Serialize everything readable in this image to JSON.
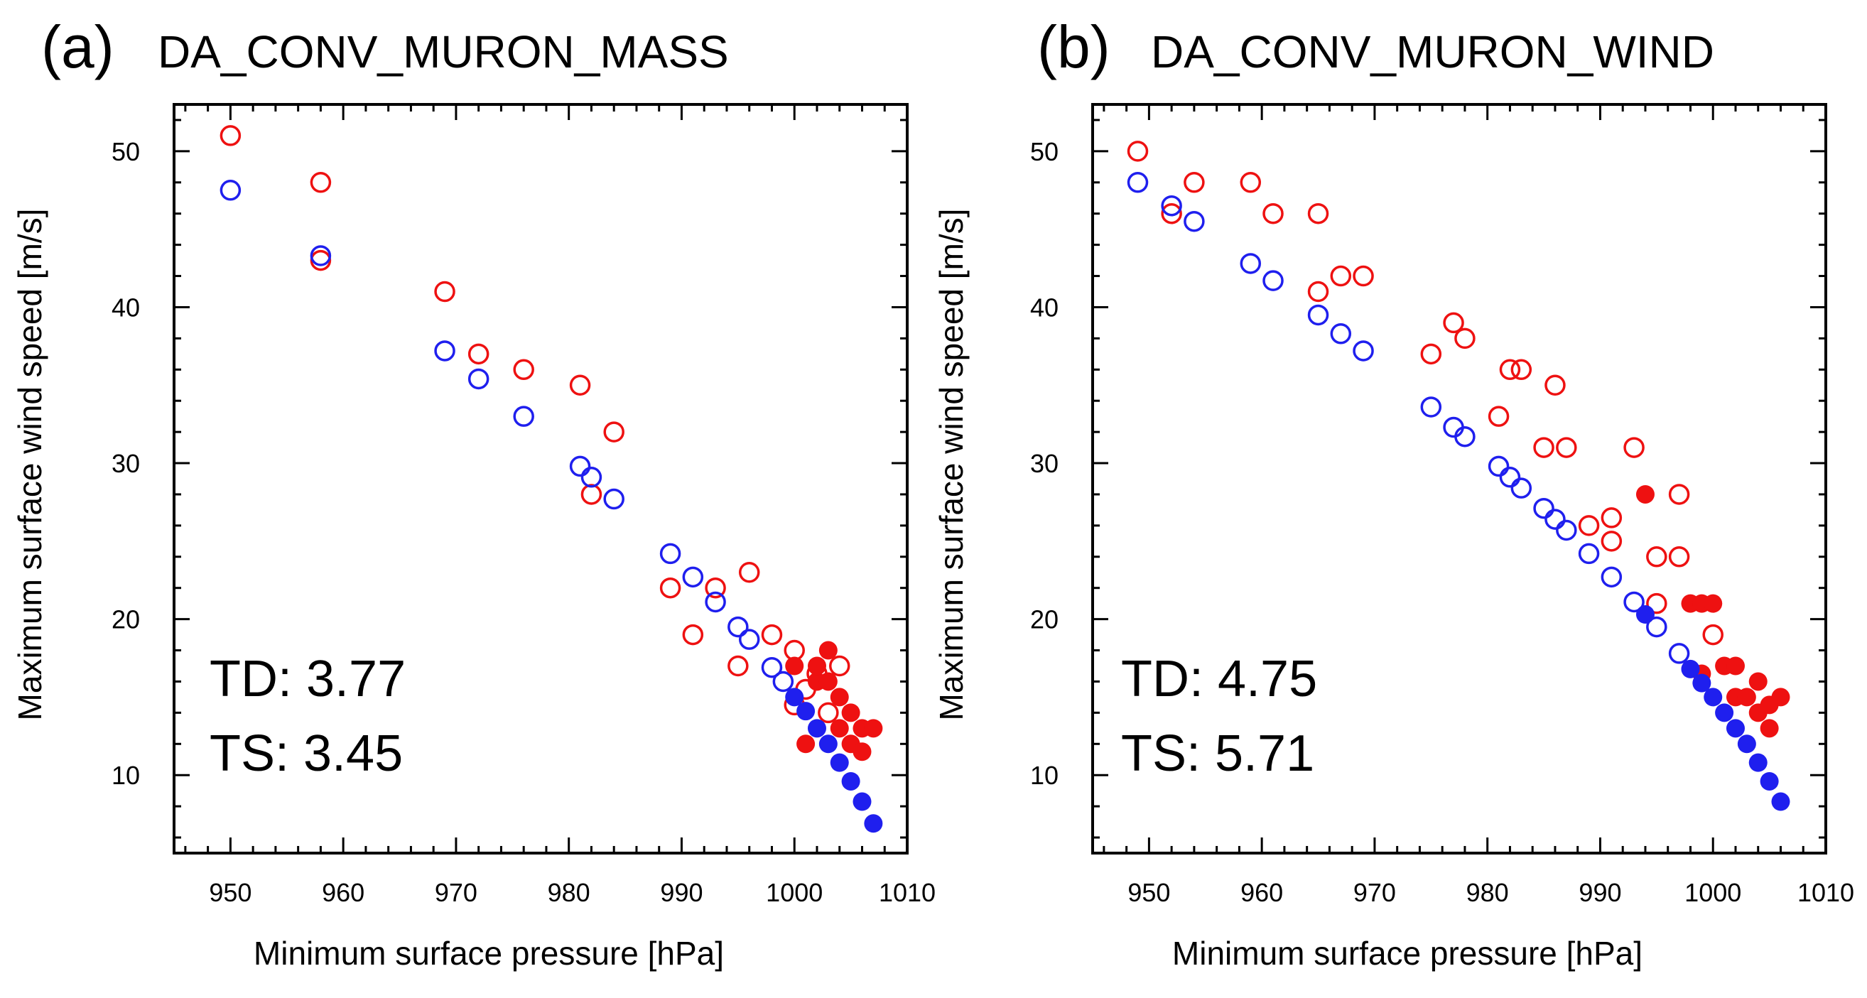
{
  "chart_data": [
    {
      "type": "scatter",
      "panel_label": "(a)",
      "title": "DA_CONV_MURON_MASS",
      "xlabel": "Minimum surface pressure [hPa]",
      "ylabel": "Maximum surface wind speed [m/s]",
      "xlim": [
        945,
        1010
      ],
      "ylim": [
        5,
        53
      ],
      "xticks": [
        950,
        960,
        970,
        980,
        990,
        1000,
        1010
      ],
      "yticks": [
        10,
        20,
        30,
        40,
        50
      ],
      "stats": {
        "td": "TD: 3.77",
        "ts": "TS: 3.45"
      },
      "series": [
        {
          "name": "red-open",
          "color": "#ee1111",
          "filled": false,
          "points": [
            [
              950,
              51
            ],
            [
              958,
              48
            ],
            [
              958,
              43
            ],
            [
              969,
              41
            ],
            [
              972,
              37
            ],
            [
              976,
              36
            ],
            [
              981,
              35
            ],
            [
              982,
              28
            ],
            [
              984,
              32
            ],
            [
              989,
              22
            ],
            [
              991,
              19
            ],
            [
              993,
              22
            ],
            [
              995,
              17
            ],
            [
              996,
              23
            ],
            [
              998,
              19
            ],
            [
              1000,
              18
            ],
            [
              1000,
              14.5
            ],
            [
              1001,
              15.5
            ],
            [
              1002,
              16.5
            ],
            [
              1003,
              14
            ],
            [
              1004,
              17
            ]
          ]
        },
        {
          "name": "blue-open",
          "color": "#1f1fee",
          "filled": false,
          "points": [
            [
              950,
              47.5
            ],
            [
              958,
              43.3
            ],
            [
              969,
              37.2
            ],
            [
              972,
              35.4
            ],
            [
              976,
              33
            ],
            [
              981,
              29.8
            ],
            [
              982,
              29.1
            ],
            [
              984,
              27.7
            ],
            [
              989,
              24.2
            ],
            [
              991,
              22.7
            ],
            [
              993,
              21.1
            ],
            [
              995,
              19.5
            ],
            [
              996,
              18.7
            ],
            [
              998,
              16.9
            ],
            [
              999,
              16
            ]
          ]
        },
        {
          "name": "red-filled",
          "color": "#ee1111",
          "filled": true,
          "points": [
            [
              1000,
              17
            ],
            [
              1001,
              12
            ],
            [
              1002,
              16
            ],
            [
              1002,
              17
            ],
            [
              1003,
              18
            ],
            [
              1003,
              16
            ],
            [
              1004,
              15
            ],
            [
              1004,
              13
            ],
            [
              1005,
              14
            ],
            [
              1005,
              12
            ],
            [
              1006,
              13
            ],
            [
              1006,
              11.5
            ],
            [
              1007,
              13
            ]
          ]
        },
        {
          "name": "blue-filled",
          "color": "#1f1fee",
          "filled": true,
          "points": [
            [
              1000,
              15
            ],
            [
              1001,
              14.1
            ],
            [
              1002,
              13
            ],
            [
              1003,
              12
            ],
            [
              1004,
              10.8
            ],
            [
              1005,
              9.6
            ],
            [
              1006,
              8.3
            ],
            [
              1007,
              6.9
            ]
          ]
        }
      ]
    },
    {
      "type": "scatter",
      "panel_label": "(b)",
      "title": "DA_CONV_MURON_WIND",
      "xlabel": "Minimum surface pressure [hPa]",
      "ylabel": "Maximum surface wind speed [m/s]",
      "xlim": [
        945,
        1010
      ],
      "ylim": [
        5,
        53
      ],
      "xticks": [
        950,
        960,
        970,
        980,
        990,
        1000,
        1010
      ],
      "yticks": [
        10,
        20,
        30,
        40,
        50
      ],
      "stats": {
        "td": "TD: 4.75",
        "ts": "TS: 5.71"
      },
      "series": [
        {
          "name": "red-open",
          "color": "#ee1111",
          "filled": false,
          "points": [
            [
              949,
              50
            ],
            [
              952,
              46
            ],
            [
              954,
              48
            ],
            [
              959,
              48
            ],
            [
              961,
              46
            ],
            [
              965,
              46
            ],
            [
              965,
              41
            ],
            [
              967,
              42
            ],
            [
              969,
              42
            ],
            [
              975,
              37
            ],
            [
              977,
              39
            ],
            [
              978,
              38
            ],
            [
              981,
              33
            ],
            [
              982,
              36
            ],
            [
              983,
              36
            ],
            [
              985,
              31
            ],
            [
              986,
              35
            ],
            [
              987,
              31
            ],
            [
              989,
              26
            ],
            [
              991,
              26.5
            ],
            [
              991,
              25
            ],
            [
              993,
              31
            ],
            [
              995,
              24
            ],
            [
              995,
              21
            ],
            [
              997,
              28
            ],
            [
              997,
              24
            ],
            [
              1000,
              19
            ]
          ]
        },
        {
          "name": "blue-open",
          "color": "#1f1fee",
          "filled": false,
          "points": [
            [
              949,
              48
            ],
            [
              952,
              46.5
            ],
            [
              954,
              45.5
            ],
            [
              959,
              42.8
            ],
            [
              961,
              41.7
            ],
            [
              965,
              39.5
            ],
            [
              967,
              38.3
            ],
            [
              969,
              37.2
            ],
            [
              975,
              33.6
            ],
            [
              977,
              32.3
            ],
            [
              978,
              31.7
            ],
            [
              981,
              29.8
            ],
            [
              982,
              29.1
            ],
            [
              983,
              28.4
            ],
            [
              985,
              27.1
            ],
            [
              986,
              26.4
            ],
            [
              987,
              25.7
            ],
            [
              989,
              24.2
            ],
            [
              991,
              22.7
            ],
            [
              993,
              21.1
            ],
            [
              995,
              19.5
            ],
            [
              997,
              17.8
            ]
          ]
        },
        {
          "name": "red-filled",
          "color": "#ee1111",
          "filled": true,
          "points": [
            [
              994,
              28
            ],
            [
              998,
              21
            ],
            [
              999,
              21
            ],
            [
              1000,
              21
            ],
            [
              999,
              16.5
            ],
            [
              1001,
              17
            ],
            [
              1002,
              17
            ],
            [
              1002,
              15
            ],
            [
              1003,
              15
            ],
            [
              1004,
              16
            ],
            [
              1004,
              14
            ],
            [
              1005,
              14.5
            ],
            [
              1005,
              13
            ],
            [
              1006,
              15
            ]
          ]
        },
        {
          "name": "blue-filled",
          "color": "#1f1fee",
          "filled": true,
          "points": [
            [
              994,
              20.3
            ],
            [
              998,
              16.8
            ],
            [
              999,
              15.9
            ],
            [
              1000,
              15
            ],
            [
              1001,
              14
            ],
            [
              1002,
              13
            ],
            [
              1003,
              12
            ],
            [
              1004,
              10.8
            ],
            [
              1005,
              9.6
            ],
            [
              1006,
              8.3
            ]
          ]
        }
      ]
    }
  ]
}
